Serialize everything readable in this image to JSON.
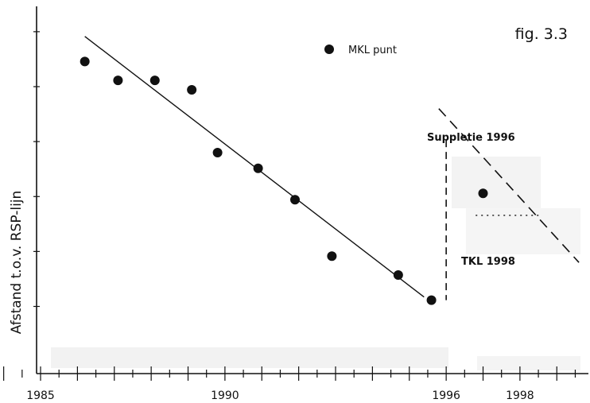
{
  "chart_data": {
    "type": "scatter",
    "figure_label": "fig.  3.3",
    "xlabel": "",
    "ylabel": "Afstand t.o.v. RSP-lijn",
    "xlim": [
      1983.9,
      1999.9
    ],
    "ylim": [
      0,
      100
    ],
    "x_tick_labels": [
      "1985",
      "1990",
      "1996",
      "1998"
    ],
    "x_tick_values": [
      1985,
      1990,
      1996,
      1998
    ],
    "legend": {
      "marker": "filled-circle",
      "label": "MKL punt",
      "placement": "top-center"
    },
    "series": [
      {
        "name": "MKL punt",
        "marker": "circle",
        "x": [
          1986.2,
          1987.1,
          1988.1,
          1989.1,
          1989.8,
          1990.9,
          1991.9,
          1992.9,
          1994.7,
          1995.6,
          1997.0
        ],
        "y": [
          88,
          82,
          82,
          79,
          59,
          54,
          44,
          26,
          20,
          12,
          46
        ]
      }
    ],
    "trendline": {
      "x": [
        1986.2,
        1995.4
      ],
      "y": [
        96,
        13
      ]
    },
    "suppletie_line": {
      "label": "Suppletie 1996",
      "style": "dashed",
      "x": [
        1995.8,
        1999.6
      ],
      "y": [
        73,
        24
      ]
    },
    "vertical_marker": {
      "x": 1996,
      "style": "dashed",
      "y": [
        63,
        12
      ]
    },
    "tkl_line": {
      "label": "TKL 1998",
      "style": "dotted",
      "x": [
        1996.8,
        1998.6
      ],
      "y": [
        39,
        39
      ]
    }
  }
}
